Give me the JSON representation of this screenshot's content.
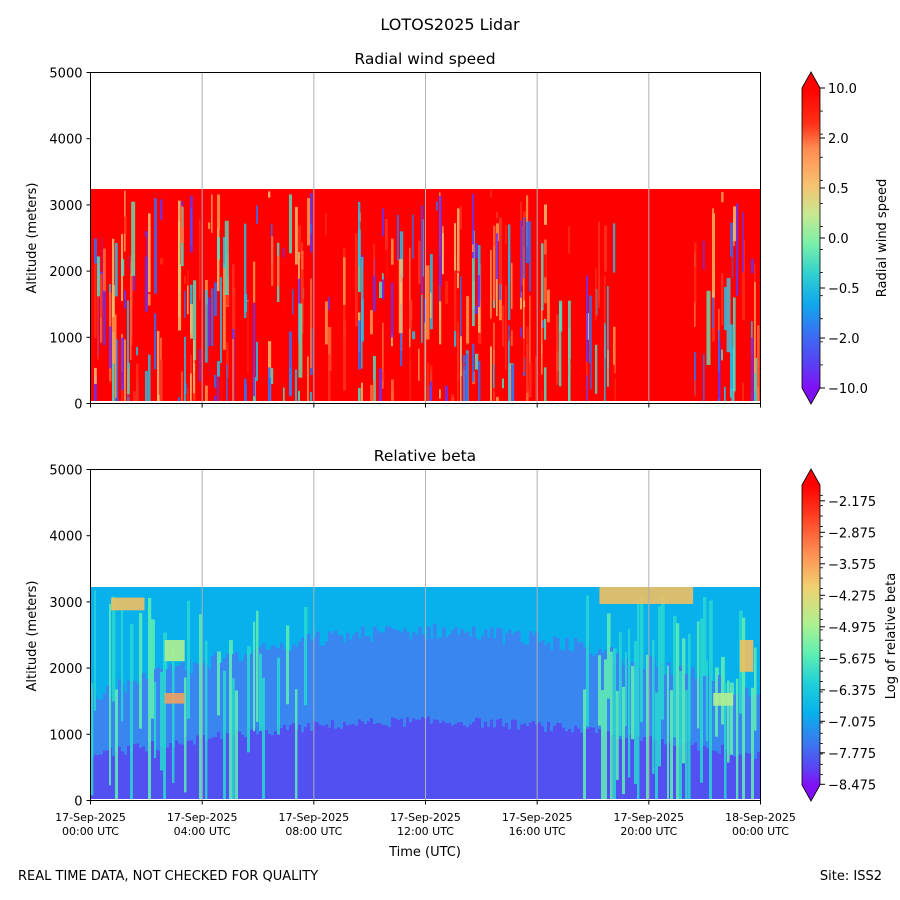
{
  "suptitle": "LOTOS2025 Lidar",
  "footer_left": "REAL TIME DATA, NOT CHECKED FOR QUALITY",
  "footer_right": "Site: ISS2",
  "chart_data": [
    {
      "type": "heatmap",
      "title": "Radial wind speed",
      "xlabel": "",
      "ylabel": "Altitude (meters)",
      "ylim": [
        0,
        5000
      ],
      "yticks": [
        "0",
        "1000",
        "2000",
        "3000",
        "4000",
        "5000"
      ],
      "xticks_shown": false,
      "data_top_altitude": 3230,
      "colorbar": {
        "label": "Radial wind speed",
        "tick_labels": [
          "−10.0",
          "−2.0",
          "−0.5",
          "0.0",
          "0.5",
          "2.0",
          "10.0"
        ],
        "levels": 13,
        "extend": "both"
      },
      "dominant_colors": [
        "#ff0000",
        "#ff5030",
        "#ff8c40",
        "#40c8e0",
        "#3a6cf0",
        "#7a20f0",
        "#60e8b0"
      ]
    },
    {
      "type": "heatmap",
      "title": "Relative beta",
      "xlabel": "Time (UTC)",
      "ylabel": "Altitude (meters)",
      "ylim": [
        0,
        5000
      ],
      "yticks": [
        "0",
        "1000",
        "2000",
        "3000",
        "4000",
        "5000"
      ],
      "xticks": [
        {
          "date": "17-Sep-2025",
          "time": "00:00 UTC"
        },
        {
          "date": "17-Sep-2025",
          "time": "04:00 UTC"
        },
        {
          "date": "17-Sep-2025",
          "time": "08:00 UTC"
        },
        {
          "date": "17-Sep-2025",
          "time": "12:00 UTC"
        },
        {
          "date": "17-Sep-2025",
          "time": "16:00 UTC"
        },
        {
          "date": "17-Sep-2025",
          "time": "20:00 UTC"
        },
        {
          "date": "18-Sep-2025",
          "time": "00:00 UTC"
        }
      ],
      "data_top_altitude": 3230,
      "colorbar": {
        "label": "Log of relative beta",
        "tick_labels": [
          "−2.175",
          "−2.875",
          "−3.575",
          "−4.275",
          "−4.975",
          "−5.675",
          "−6.375",
          "−7.075",
          "−7.775",
          "−8.475"
        ],
        "levels": 29,
        "extend": "both"
      },
      "dominant_colors": [
        "#08b0ec",
        "#3a80f0",
        "#5050f0",
        "#60f0b0",
        "#f0c060"
      ]
    }
  ]
}
